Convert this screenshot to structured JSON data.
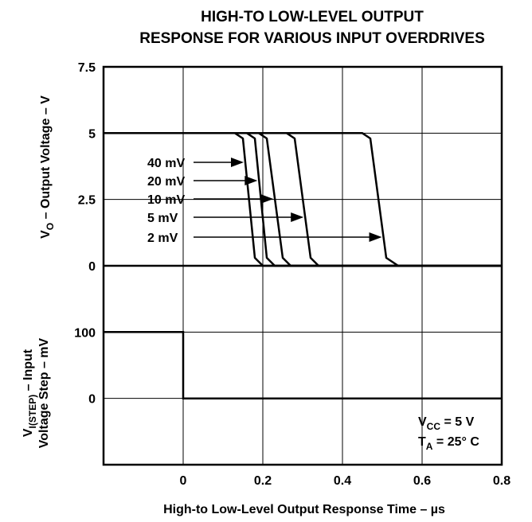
{
  "chart_data": {
    "type": "line",
    "title": "HIGH-TO LOW-LEVEL OUTPUT",
    "subtitle": "RESPONSE FOR VARIOUS INPUT OVERDRIVES",
    "xlabel": "High-to Low-Level Output Response Time – µs",
    "x_ticks": [
      "0",
      "0.2",
      "0.4",
      "0.6",
      "0.8"
    ],
    "xlim": [
      -0.2,
      0.8
    ],
    "grid": true,
    "top_panel": {
      "ylabel_main": "V",
      "ylabel_sub": "O",
      "ylabel_rest": " – Output Voltage – V",
      "y_ticks": [
        "7.5",
        "5",
        "2.5",
        "0"
      ],
      "ylim": [
        0,
        7.5
      ],
      "series": [
        {
          "name": "40 mV",
          "x": [
            -0.2,
            0.13,
            0.15,
            0.18,
            0.2,
            0.8
          ],
          "y": [
            5,
            5,
            4.8,
            0.3,
            0,
            0
          ]
        },
        {
          "name": "20 mV",
          "x": [
            -0.2,
            0.16,
            0.18,
            0.21,
            0.23,
            0.8
          ],
          "y": [
            5,
            5,
            4.8,
            0.3,
            0,
            0
          ]
        },
        {
          "name": "10 mV",
          "x": [
            -0.2,
            0.19,
            0.21,
            0.25,
            0.27,
            0.8
          ],
          "y": [
            5,
            5,
            4.8,
            0.3,
            0,
            0
          ]
        },
        {
          "name": "5 mV",
          "x": [
            -0.2,
            0.26,
            0.28,
            0.32,
            0.34,
            0.8
          ],
          "y": [
            5,
            5,
            4.8,
            0.3,
            0,
            0
          ]
        },
        {
          "name": "2 mV",
          "x": [
            -0.2,
            0.45,
            0.47,
            0.51,
            0.54,
            0.8
          ],
          "y": [
            5,
            5,
            4.8,
            0.3,
            0,
            0
          ]
        }
      ]
    },
    "bottom_panel": {
      "ylabel_line1_main": "V",
      "ylabel_line1_sub": "I(STEP)",
      "ylabel_line1_rest": " – Input",
      "ylabel_line2": "Voltage Step – mV",
      "y_ticks": [
        "100",
        "0"
      ],
      "ylim": [
        -100,
        200
      ],
      "series": [
        {
          "name": "Input step",
          "x": [
            -0.2,
            0,
            0,
            0.8
          ],
          "y": [
            100,
            100,
            0,
            0
          ]
        }
      ]
    },
    "conditions": {
      "vcc_main": "V",
      "vcc_sub": "CC",
      "vcc_rest": " = 5 V",
      "ta_main": "T",
      "ta_sub": "A",
      "ta_rest": " = 25° C"
    }
  }
}
